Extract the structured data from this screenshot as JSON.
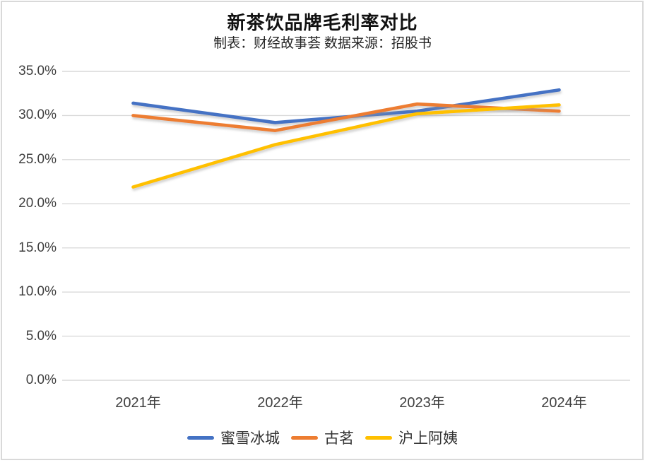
{
  "frame": {
    "background_color": "#FFFFFF",
    "border_color": "#D9D9D9"
  },
  "header": {
    "title": "新茶饮品牌毛利率对比",
    "subtitle": "制表：财经故事荟 数据来源：招股书"
  },
  "chart_data": {
    "type": "line",
    "title": "新茶饮品牌毛利率对比",
    "subtitle": "制表：财经故事荟 数据来源：招股书",
    "categories": [
      "2021年",
      "2022年",
      "2023年",
      "2024年"
    ],
    "series": [
      {
        "name": "蜜雪冰城",
        "color": "#4472C4",
        "values": [
          31.4,
          29.2,
          30.5,
          32.9
        ]
      },
      {
        "name": "古茗",
        "color": "#ED7D31",
        "values": [
          30.0,
          28.3,
          31.3,
          30.5
        ]
      },
      {
        "name": "沪上阿姨",
        "color": "#FFC000",
        "values": [
          21.9,
          26.7,
          30.2,
          31.2
        ]
      }
    ],
    "ylim": [
      0,
      35
    ],
    "y_ticks": [
      {
        "value": 0,
        "label": "0.0%"
      },
      {
        "value": 5,
        "label": "5.0%"
      },
      {
        "value": 10,
        "label": "10.0%"
      },
      {
        "value": 15,
        "label": "15.0%"
      },
      {
        "value": 20,
        "label": "20.0%"
      },
      {
        "value": 25,
        "label": "25.0%"
      },
      {
        "value": 30,
        "label": "30.0%"
      },
      {
        "value": 35,
        "label": "35.0%"
      }
    ],
    "grid": true,
    "gridline_color": "#D9D9D9",
    "axis_text_color": "#3F3F3F",
    "legend_position": "bottom",
    "legend_entries": [
      "蜜雪冰城",
      "古茗",
      "沪上阿姨"
    ]
  }
}
